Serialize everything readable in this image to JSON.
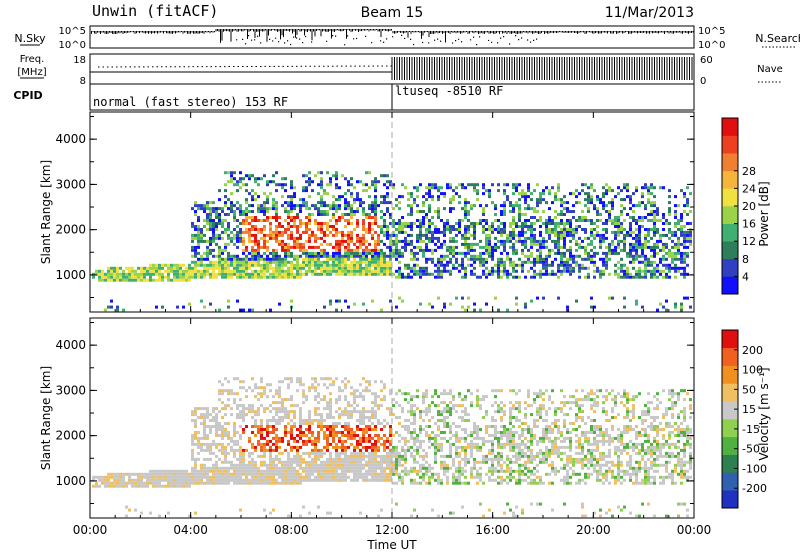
{
  "header": {
    "station": "Unwin (fitACF)",
    "beam": "Beam 15",
    "date": "11/Mar/2013"
  },
  "chart_data": [
    {
      "type": "line",
      "name": "noise",
      "left_label": "N.Sky",
      "right_label": "N.Search",
      "left_ticks": [
        "10^5",
        "10^0"
      ],
      "right_ticks": [
        "10^5",
        "10^0"
      ]
    },
    {
      "type": "line",
      "name": "frequency",
      "left_label": "Freq.",
      "left_unit": "[MHz]",
      "right_label": "Nave",
      "left_ticks": [
        18,
        8
      ],
      "right_ticks": [
        60,
        0
      ]
    },
    {
      "type": "table",
      "name": "cpid",
      "label": "CPID",
      "segments": [
        {
          "text": "normal (fast stereo) 153 RF",
          "start_hour": 0,
          "end_hour": 12
        },
        {
          "text": "ltuseq -8510 RF",
          "start_hour": 12,
          "end_hour": 24
        }
      ]
    },
    {
      "type": "heatmap",
      "name": "power",
      "ylabel": "Slant Range [km]",
      "yticks": [
        1000,
        2000,
        3000,
        4000
      ],
      "ylim": [
        180,
        4600
      ],
      "colorbar_label": "Power [dB]",
      "colorbar_ticks": [
        4,
        8,
        12,
        16,
        20,
        24,
        28
      ],
      "colorbar_colors": [
        "#1010ff",
        "#3040c0",
        "#2e7d5b",
        "#40b070",
        "#9ad24a",
        "#f0e040",
        "#f5b43a",
        "#f08030",
        "#ec4020",
        "#e01010"
      ]
    },
    {
      "type": "heatmap",
      "name": "velocity",
      "ylabel": "Slant Range [km]",
      "yticks": [
        1000,
        2000,
        3000,
        4000
      ],
      "ylim": [
        180,
        4600
      ],
      "colorbar_label": "Velocity [m s⁻¹]",
      "colorbar_ticks": [
        200,
        100,
        50,
        15,
        -15,
        -50,
        -100,
        -200
      ],
      "colorbar_colors": [
        "#2030c0",
        "#3060b0",
        "#2e8050",
        "#50b040",
        "#90d050",
        "#c8c8c8",
        "#f0c060",
        "#f09020",
        "#f06020",
        "#e01010"
      ]
    }
  ],
  "xaxis": {
    "label": "Time UT",
    "ticks": [
      "00:00",
      "04:00",
      "08:00",
      "12:00",
      "16:00",
      "20:00",
      "00:00"
    ],
    "xlim": [
      0,
      24
    ]
  }
}
